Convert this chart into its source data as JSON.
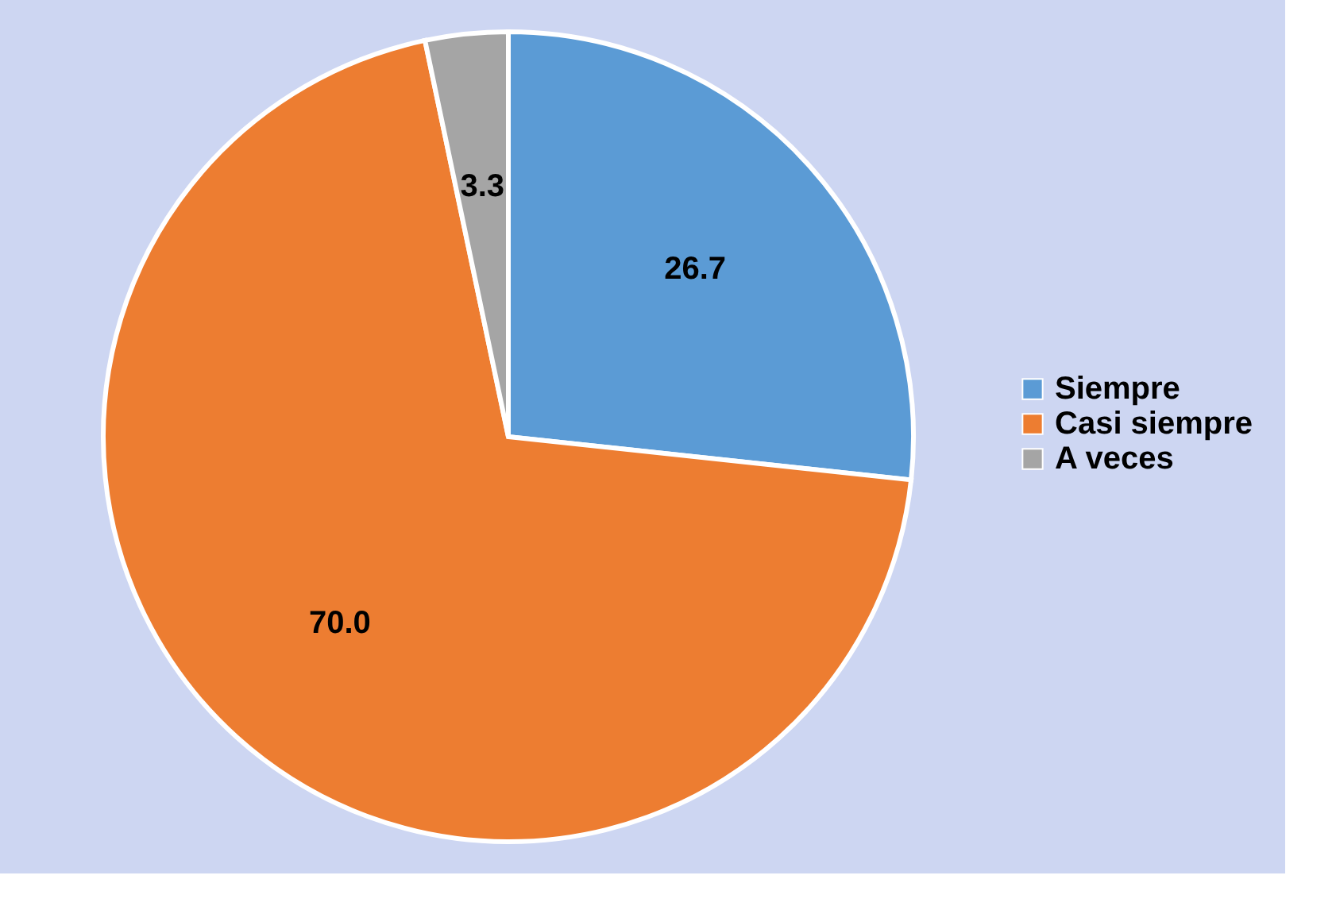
{
  "chart_data": {
    "type": "pie",
    "categories": [
      "Siempre",
      "Casi siempre",
      "A veces"
    ],
    "values": [
      26.7,
      70.0,
      3.3
    ],
    "colors": [
      "#5b9bd5",
      "#ed7d31",
      "#a5a5a5"
    ],
    "value_labels": [
      "26.7",
      "70.0",
      "3.3"
    ],
    "legend": "right"
  }
}
